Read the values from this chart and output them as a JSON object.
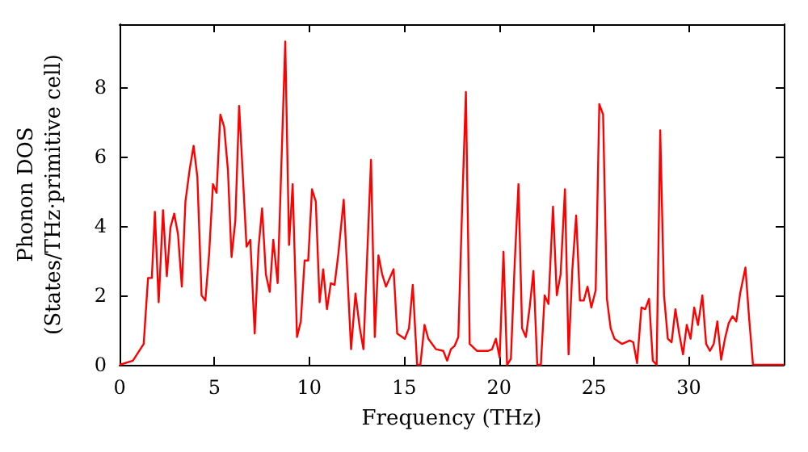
{
  "chart_data": {
    "type": "line",
    "xlabel": "Frequency (THz)",
    "ylabel": "Phonon DOS\n(States/THz·primitive cell)",
    "xlim": [
      0,
      35
    ],
    "xticks": [
      0,
      5,
      10,
      15,
      20,
      25,
      30
    ],
    "ylim": [
      0,
      9.8
    ],
    "yticks": [
      0,
      2,
      4,
      6,
      8
    ],
    "marker": "none",
    "line_style": "solid",
    "series": [
      {
        "color": "#ff0000",
        "x": [
          0,
          0.7,
          1.27,
          1.5,
          1.7,
          1.86,
          2.06,
          2.29,
          2.49,
          2.68,
          2.88,
          3.08,
          3.28,
          3.47,
          3.7,
          3.9,
          4.1,
          4.32,
          4.52,
          4.72,
          4.92,
          5.11,
          5.31,
          5.51,
          5.71,
          5.9,
          6.1,
          6.3,
          6.5,
          6.69,
          6.89,
          7.12,
          7.32,
          7.51,
          7.71,
          7.91,
          8.1,
          8.33,
          8.73,
          8.93,
          9.12,
          9.35,
          9.55,
          9.75,
          9.94,
          10.14,
          10.34,
          10.54,
          10.73,
          10.93,
          11.13,
          11.33,
          11.53,
          11.81,
          12.2,
          12.43,
          12.66,
          12.85,
          13.25,
          13.45,
          13.64,
          13.84,
          14.04,
          14.44,
          14.63,
          15.03,
          15.25,
          15.45,
          15.68,
          15.85,
          16.07,
          16.27,
          16.67,
          17.06,
          17.26,
          17.46,
          17.66,
          17.85,
          18.05,
          18.25,
          18.45,
          18.84,
          19.43,
          19.63,
          19.83,
          20.03,
          20.23,
          20.42,
          20.62,
          20.82,
          21.02,
          21.21,
          21.41,
          21.61,
          21.81,
          22.01,
          22.2,
          22.4,
          22.6,
          22.84,
          23.04,
          23.24,
          23.47,
          23.66,
          23.86,
          24.06,
          24.26,
          24.46,
          24.66,
          24.86,
          25.09,
          25.28,
          25.48,
          25.68,
          25.88,
          26.08,
          26.48,
          26.88,
          27.07,
          27.27,
          27.5,
          27.7,
          27.9,
          28.1,
          28.3,
          28.49,
          28.69,
          28.89,
          29.09,
          29.29,
          29.49,
          29.69,
          29.89,
          30.09,
          30.28,
          30.48,
          30.71,
          30.91,
          31.11,
          31.31,
          31.5,
          31.7,
          31.9,
          32.1,
          32.3,
          32.5,
          32.7,
          32.98,
          33.18,
          33.38,
          35
        ],
        "values": [
          0,
          0.12,
          0.6,
          2.5,
          2.5,
          4.4,
          1.8,
          4.45,
          2.55,
          3.95,
          4.35,
          3.75,
          2.25,
          4.7,
          5.65,
          6.3,
          5.4,
          2.0,
          1.85,
          3.2,
          5.2,
          4.95,
          7.2,
          6.85,
          5.6,
          3.1,
          4.15,
          7.45,
          5.4,
          3.4,
          3.6,
          0.9,
          3.35,
          4.5,
          2.6,
          2.1,
          3.6,
          2.35,
          9.3,
          3.45,
          5.2,
          0.8,
          1.25,
          3.0,
          3.0,
          5.05,
          4.7,
          1.8,
          2.75,
          1.6,
          2.35,
          2.3,
          3.2,
          4.75,
          0.45,
          2.05,
          1.05,
          0.45,
          5.9,
          0.8,
          3.15,
          2.6,
          2.25,
          2.75,
          0.9,
          0.75,
          1.05,
          2.3,
          0,
          0,
          1.15,
          0.75,
          0.45,
          0.4,
          0.12,
          0.45,
          0.55,
          0.8,
          4.5,
          7.85,
          0.6,
          0.4,
          0.4,
          0.45,
          0.75,
          0.2,
          3.25,
          0,
          0.17,
          2.9,
          5.2,
          1.05,
          0.8,
          1.65,
          2.7,
          0,
          0,
          2.0,
          1.75,
          4.55,
          2.0,
          2.6,
          5.05,
          0.3,
          2.75,
          4.3,
          1.85,
          1.85,
          2.25,
          1.65,
          2.15,
          7.5,
          7.2,
          1.9,
          1.05,
          0.75,
          0.6,
          0.7,
          0.65,
          0.05,
          1.65,
          1.6,
          1.9,
          0.12,
          0,
          6.75,
          2.0,
          0.75,
          0.65,
          1.6,
          0.9,
          0.3,
          1.15,
          0.75,
          1.65,
          1.15,
          2.0,
          0.6,
          0.4,
          0.6,
          1.25,
          0.15,
          0.75,
          1.2,
          1.4,
          1.25,
          2.05,
          2.8,
          1.3,
          0,
          0
        ]
      }
    ]
  }
}
